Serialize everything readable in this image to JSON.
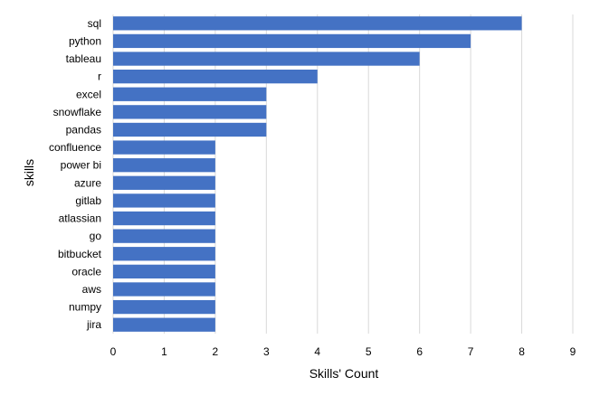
{
  "chart_data": {
    "type": "bar",
    "orientation": "horizontal",
    "categories": [
      "sql",
      "python",
      "tableau",
      "r",
      "excel",
      "snowflake",
      "pandas",
      "confluence",
      "power bi",
      "azure",
      "gitlab",
      "atlassian",
      "go",
      "bitbucket",
      "oracle",
      "aws",
      "numpy",
      "jira"
    ],
    "values": [
      8,
      7,
      6,
      4,
      3,
      3,
      3,
      2,
      2,
      2,
      2,
      2,
      2,
      2,
      2,
      2,
      2,
      2
    ],
    "title": "",
    "xlabel": "Skills' Count",
    "ylabel": "skills",
    "xlim": [
      0,
      9
    ],
    "xticks": [
      "0",
      "1",
      "2",
      "3",
      "4",
      "5",
      "6",
      "7",
      "8",
      "9"
    ],
    "grid": "vertical",
    "legend": "none",
    "bar_color": "#4472c4",
    "grid_color": "#d9d9d9"
  }
}
